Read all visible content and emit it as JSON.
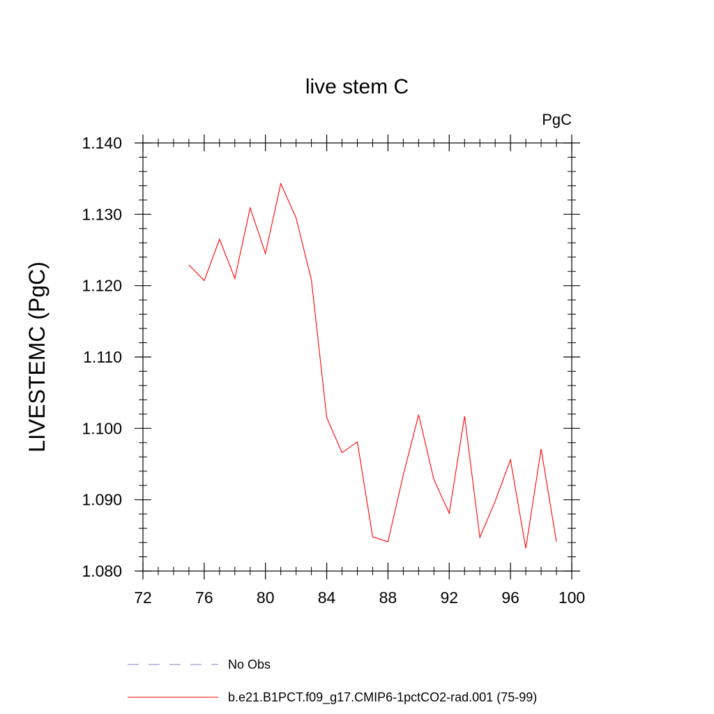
{
  "chart_data": {
    "type": "line",
    "title": "live stem C",
    "units": "PgC",
    "ylabel": "LIVESTEMC  (PgC)",
    "xlabel": "",
    "xlim": [
      72,
      100
    ],
    "ylim": [
      1.08,
      1.14
    ],
    "x_ticks": [
      72,
      76,
      80,
      84,
      88,
      92,
      96,
      100
    ],
    "x_tick_labels": [
      "72",
      "76",
      "80",
      "84",
      "88",
      "92",
      "96",
      "100"
    ],
    "y_ticks": [
      1.08,
      1.09,
      1.1,
      1.11,
      1.12,
      1.13,
      1.14
    ],
    "y_tick_labels": [
      "1.080",
      "1.090",
      "1.100",
      "1.110",
      "1.120",
      "1.130",
      "1.140"
    ],
    "grid": false,
    "legend_position": "bottom",
    "series": [
      {
        "name": "b.e21.B1PCT.f09_g17.CMIP6-1pctCO2-rad.001 (75-99)",
        "color": "#ff0000",
        "dash": "solid",
        "x": [
          75,
          76,
          77,
          78,
          79,
          80,
          81,
          82,
          83,
          84,
          85,
          86,
          87,
          88,
          89,
          90,
          91,
          92,
          93,
          94,
          95,
          96,
          97,
          98,
          99
        ],
        "y": [
          1.1229,
          1.1207,
          1.1265,
          1.121,
          1.1309,
          1.1245,
          1.1343,
          1.1295,
          1.1208,
          1.1015,
          1.0966,
          1.0981,
          1.0848,
          1.0841,
          1.0935,
          1.1019,
          1.0928,
          1.0881,
          1.1017,
          1.0847,
          1.0898,
          1.0956,
          1.0832,
          1.0971,
          1.0841
        ]
      }
    ],
    "legend": [
      {
        "label": "No Obs",
        "color": "#8080c0",
        "dash": "dashed"
      },
      {
        "label": "b.e21.B1PCT.f09_g17.CMIP6-1pctCO2-rad.001 (75-99)",
        "color": "#ff0000",
        "dash": "solid"
      }
    ]
  }
}
